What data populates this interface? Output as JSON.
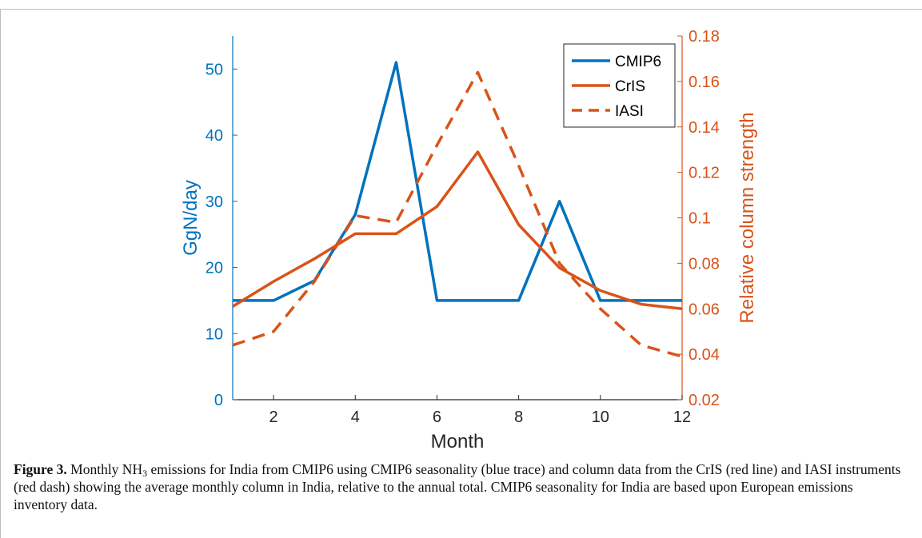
{
  "chart_data": {
    "type": "line",
    "xlabel": "Month",
    "ylabel_left": "GgN/day",
    "ylabel_right": "Relative column strength",
    "xlim": [
      1,
      12
    ],
    "xticks": [
      2,
      4,
      6,
      8,
      10,
      12
    ],
    "ylim_left": [
      0,
      55
    ],
    "yticks_left": [
      0,
      10,
      20,
      30,
      40,
      50
    ],
    "ylim_right": [
      0.02,
      0.18
    ],
    "yticks_right": [
      0.02,
      0.04,
      0.06,
      0.08,
      0.1,
      0.12,
      0.14,
      0.16,
      0.18
    ],
    "grid": false,
    "legend_position": "top-right",
    "colors": {
      "left_axis": "#0072BD",
      "right_axis": "#D95319"
    },
    "series": [
      {
        "name": "CMIP6",
        "axis": "left",
        "style": "solid",
        "color": "#0072BD",
        "x": [
          1,
          2,
          3,
          4,
          5,
          6,
          7,
          8,
          9,
          10,
          11,
          12
        ],
        "values": [
          15,
          15,
          18,
          28,
          51,
          15,
          15,
          15,
          30,
          15,
          15,
          15
        ]
      },
      {
        "name": "CrIS",
        "axis": "right",
        "style": "solid",
        "color": "#D95319",
        "x": [
          1,
          2,
          3,
          4,
          5,
          6,
          7,
          8,
          9,
          10,
          11,
          12
        ],
        "values": [
          0.061,
          0.072,
          0.082,
          0.093,
          0.093,
          0.105,
          0.129,
          0.097,
          0.078,
          0.068,
          0.062,
          0.06
        ]
      },
      {
        "name": "IASI",
        "axis": "right",
        "style": "dashed",
        "color": "#D95319",
        "x": [
          1,
          2,
          3,
          4,
          5,
          6,
          7,
          8,
          9,
          10,
          11,
          12
        ],
        "values": [
          0.044,
          0.05,
          0.072,
          0.101,
          0.098,
          0.132,
          0.164,
          0.123,
          0.08,
          0.06,
          0.044,
          0.039
        ]
      }
    ]
  },
  "caption": {
    "label": "Figure 3.",
    "text_before_sub": " Monthly NH",
    "sub": "3",
    "text_after_sub": " emissions for India from CMIP6 using CMIP6 seasonality (blue trace) and column data from the CrIS (red line) and IASI instruments (red dash) showing the average monthly column in India, relative to the annual total. CMIP6 seasonality for India are based upon European emissions inventory data."
  }
}
